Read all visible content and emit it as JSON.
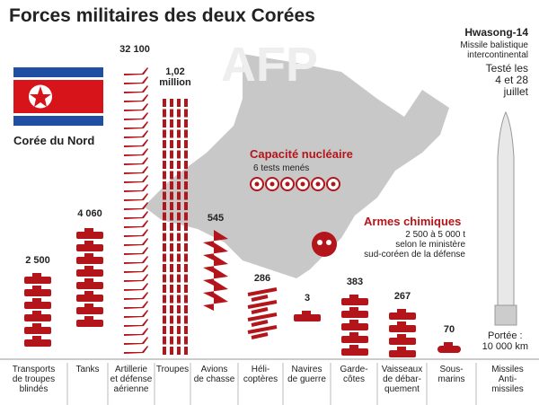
{
  "title": "Forces militaires des deux Corées",
  "watermark": "AFP",
  "flag_label": "Corée du Nord",
  "missile": {
    "name": "Hwasong-14",
    "description": "Missile balistique\nintercontinental",
    "tested": "Testé les\n4 et 28\njuillet",
    "range": "Portée :\n10 000 km"
  },
  "nuclear": {
    "title": "Capacité nucléaire",
    "note": "6 tests menés"
  },
  "chemical": {
    "title": "Armes chimiques",
    "note": "2 500 à 5 000 t\nselon le ministère\nsud-coréen de la défense"
  },
  "categories": [
    {
      "label": "Transports\nde troupes\nblindés",
      "value": "2 500"
    },
    {
      "label": "Tanks",
      "value": "4 060"
    },
    {
      "label": "Artillerie\net défense\naérienne",
      "value": "32 100"
    },
    {
      "label": "Troupes",
      "value": "1,02\nmillion"
    },
    {
      "label": "Avions\nde chasse",
      "value": "545"
    },
    {
      "label": "Héli-\ncoptères",
      "value": "286"
    },
    {
      "label": "Navires\nde guerre",
      "value": "3"
    },
    {
      "label": "Garde-\ncôtes",
      "value": "383"
    },
    {
      "label": "Vaisseaux\nde débar-\nquement",
      "value": "267"
    },
    {
      "label": "Sous-\nmarins",
      "value": "70"
    },
    {
      "label": "Missiles\nAnti-\nmissiles"
    }
  ]
}
